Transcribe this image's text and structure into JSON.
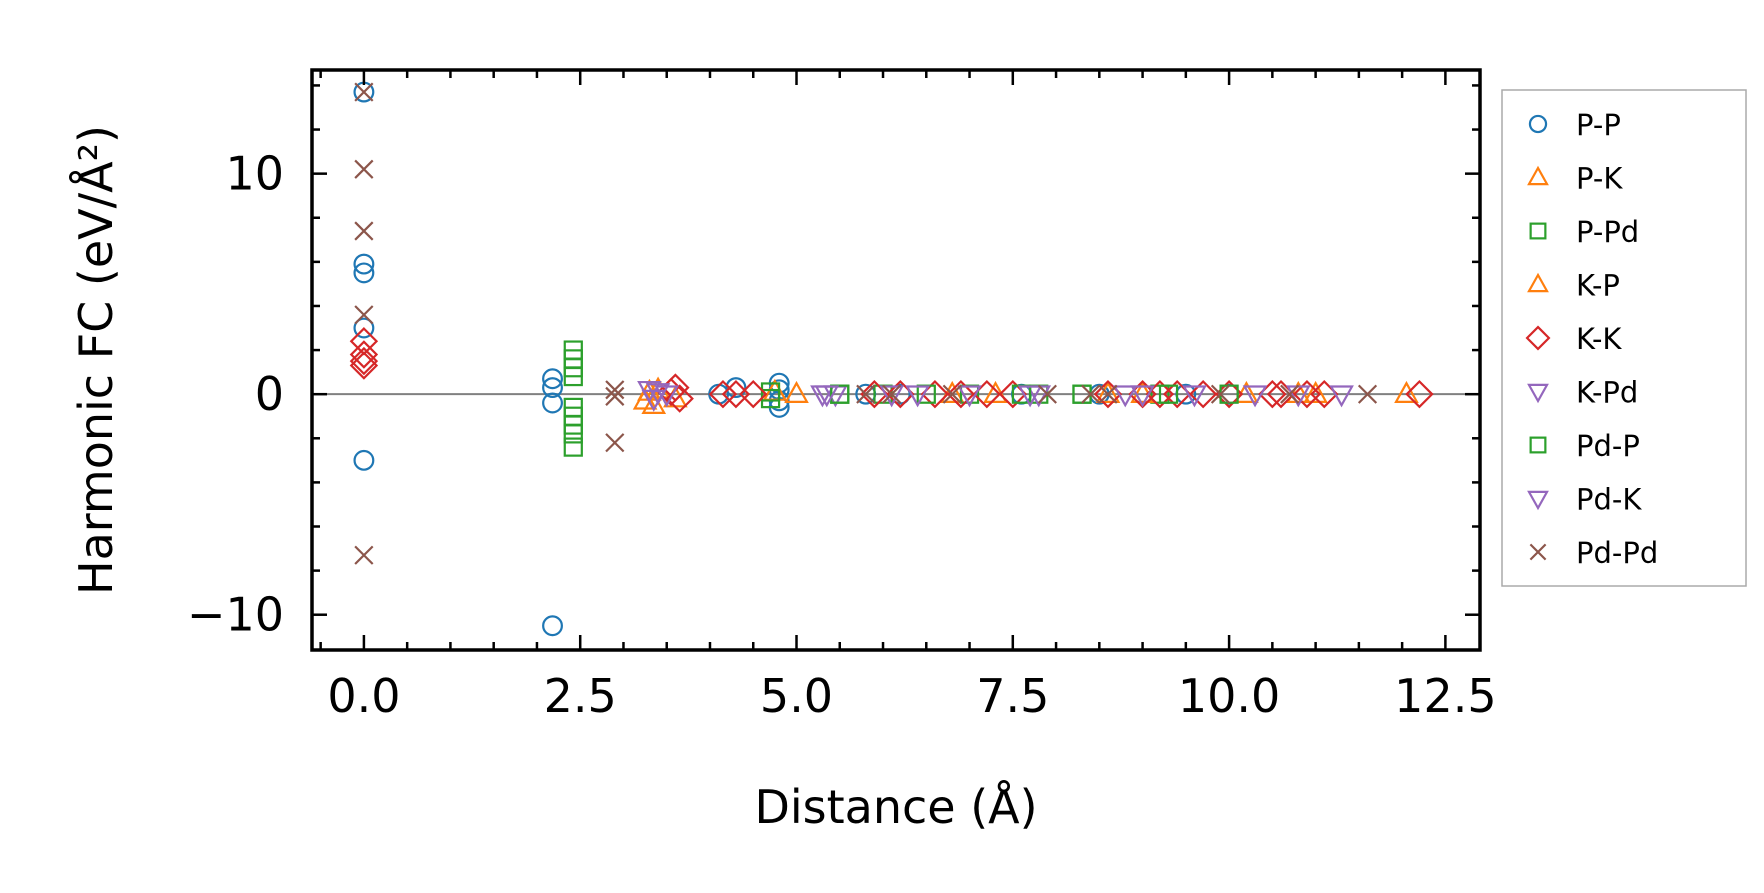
{
  "chart_data": {
    "type": "scatter",
    "title": "",
    "xlabel": "Distance (Å)",
    "ylabel": "Harmonic FC (eV/Å²)",
    "xlim": [
      -0.6,
      12.9
    ],
    "ylim": [
      -11.6,
      14.7
    ],
    "xticks": [
      0.0,
      2.5,
      5.0,
      7.5,
      10.0,
      12.5
    ],
    "xtick_labels": [
      "0.0",
      "2.5",
      "5.0",
      "7.5",
      "10.0",
      "12.5"
    ],
    "yticks": [
      -10,
      0,
      10
    ],
    "ytick_labels": [
      "−10",
      "0",
      "10"
    ],
    "x_minor_step": 0.5,
    "y_minor_step": 2,
    "grid": false,
    "reference_line": {
      "y": 0,
      "color": "#808080"
    },
    "legend_position": "outside right",
    "series": [
      {
        "name": "P-P",
        "marker": "circle",
        "color": "#1f77b4",
        "points": [
          [
            0,
            13.7
          ],
          [
            0,
            5.9
          ],
          [
            0,
            5.5
          ],
          [
            0,
            3.0
          ],
          [
            0,
            -3.0
          ],
          [
            2.18,
            0.7
          ],
          [
            2.18,
            0.3
          ],
          [
            2.18,
            -0.4
          ],
          [
            2.18,
            -10.5
          ],
          [
            4.1,
            0
          ],
          [
            4.3,
            0.3
          ],
          [
            4.8,
            0.5
          ],
          [
            4.8,
            0.2
          ],
          [
            4.8,
            -0.3
          ],
          [
            4.8,
            -0.6
          ],
          [
            5.8,
            0
          ],
          [
            6.2,
            0
          ],
          [
            7.6,
            0
          ],
          [
            8.5,
            0
          ],
          [
            9.5,
            0
          ],
          [
            10.0,
            0
          ]
        ]
      },
      {
        "name": "P-K",
        "marker": "triangle-up",
        "color": "#ff7f0e",
        "points": [
          [
            3.25,
            -0.3
          ],
          [
            3.3,
            0.1
          ],
          [
            3.35,
            -0.5
          ],
          [
            4.75,
            0.1
          ],
          [
            5.0,
            0
          ],
          [
            6.8,
            0
          ],
          [
            8.6,
            0
          ],
          [
            10.2,
            0
          ],
          [
            11.0,
            0
          ],
          [
            12.05,
            0
          ]
        ]
      },
      {
        "name": "P-Pd",
        "marker": "square",
        "color": "#2ca02c",
        "points": [
          [
            2.42,
            2.0
          ],
          [
            2.42,
            1.6
          ],
          [
            2.42,
            1.2
          ],
          [
            2.42,
            0.8
          ],
          [
            2.42,
            -0.6
          ],
          [
            2.42,
            -1.0
          ],
          [
            2.42,
            -1.4
          ],
          [
            2.42,
            -1.8
          ],
          [
            2.42,
            -2.4
          ],
          [
            4.7,
            0.1
          ],
          [
            4.7,
            -0.2
          ],
          [
            5.5,
            0
          ],
          [
            6.0,
            0
          ],
          [
            7.0,
            0
          ],
          [
            7.8,
            0
          ],
          [
            8.3,
            0
          ],
          [
            9.2,
            0
          ]
        ]
      },
      {
        "name": "K-P",
        "marker": "triangle-up",
        "color": "#ff7f0e",
        "points": [
          [
            3.4,
            0.2
          ],
          [
            3.6,
            -0.2
          ],
          [
            7.3,
            0
          ],
          [
            9.0,
            0
          ],
          [
            10.8,
            0
          ]
        ]
      },
      {
        "name": "K-K",
        "marker": "diamond",
        "color": "#d62728",
        "points": [
          [
            0,
            2.4
          ],
          [
            0,
            1.8
          ],
          [
            0,
            1.5
          ],
          [
            0,
            1.3
          ],
          [
            3.55,
            0.1
          ],
          [
            3.6,
            0.3
          ],
          [
            3.65,
            -0.2
          ],
          [
            4.15,
            0
          ],
          [
            4.3,
            0
          ],
          [
            4.5,
            0
          ],
          [
            5.9,
            0
          ],
          [
            6.2,
            0
          ],
          [
            6.6,
            0
          ],
          [
            6.9,
            0
          ],
          [
            7.2,
            0
          ],
          [
            7.5,
            0
          ],
          [
            8.6,
            0
          ],
          [
            9.0,
            0
          ],
          [
            9.2,
            0
          ],
          [
            9.4,
            0
          ],
          [
            9.7,
            0
          ],
          [
            10.0,
            0
          ],
          [
            10.5,
            0
          ],
          [
            10.6,
            0
          ],
          [
            10.9,
            0
          ],
          [
            11.1,
            0
          ],
          [
            12.2,
            0
          ]
        ]
      },
      {
        "name": "K-Pd",
        "marker": "triangle-down",
        "color": "#9467bd",
        "points": [
          [
            3.3,
            0.2
          ],
          [
            3.35,
            -0.2
          ],
          [
            3.5,
            0
          ],
          [
            5.3,
            0
          ],
          [
            5.45,
            0
          ],
          [
            6.1,
            0
          ],
          [
            7.0,
            0
          ],
          [
            7.8,
            0
          ],
          [
            8.8,
            0
          ],
          [
            9.6,
            0
          ],
          [
            10.3,
            0
          ],
          [
            11.3,
            0
          ]
        ]
      },
      {
        "name": "Pd-P",
        "marker": "square",
        "color": "#2ca02c",
        "points": [
          [
            5.5,
            0
          ],
          [
            6.5,
            0
          ],
          [
            7.6,
            0
          ],
          [
            8.3,
            0
          ],
          [
            9.3,
            0
          ],
          [
            10.0,
            0
          ]
        ]
      },
      {
        "name": "Pd-K",
        "marker": "triangle-down",
        "color": "#9467bd",
        "points": [
          [
            3.4,
            0.1
          ],
          [
            5.35,
            0
          ],
          [
            6.4,
            0
          ],
          [
            7.7,
            0
          ],
          [
            9.0,
            0
          ],
          [
            10.8,
            0
          ]
        ]
      },
      {
        "name": "Pd-Pd",
        "marker": "cross",
        "color": "#8c564b",
        "points": [
          [
            0,
            13.7
          ],
          [
            0,
            10.2
          ],
          [
            0,
            7.4
          ],
          [
            0,
            3.6
          ],
          [
            0,
            -7.3
          ],
          [
            2.9,
            0.2
          ],
          [
            2.9,
            -0.1
          ],
          [
            2.9,
            -2.2
          ],
          [
            5.8,
            0
          ],
          [
            6.1,
            0
          ],
          [
            6.8,
            0
          ],
          [
            7.9,
            0
          ],
          [
            8.4,
            0
          ],
          [
            8.6,
            0
          ],
          [
            9.9,
            0
          ],
          [
            10.7,
            0
          ],
          [
            11.6,
            0
          ]
        ]
      }
    ]
  }
}
